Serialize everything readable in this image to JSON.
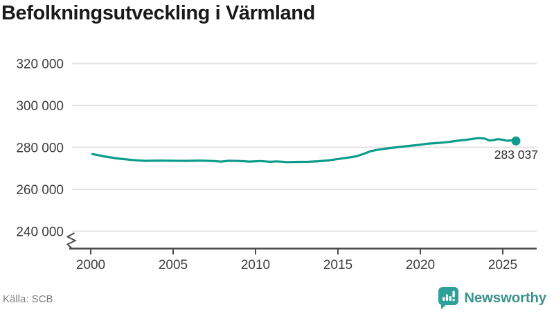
{
  "title": "Befolkningsutveckling i Värmland",
  "source": "Källa: SCB",
  "brand": {
    "name": "Newsworthy"
  },
  "colors": {
    "line": "#0b9c8c",
    "grid": "#e3e3e3",
    "axis": "#4a4a4a",
    "tick_label": "#3d3d3d",
    "title": "#1a1a1a",
    "source": "#7d7d7d",
    "brand_icon": "#2da099",
    "brand_text": "#3d938d",
    "end_label": "#2b2b2b"
  },
  "chart_data": {
    "type": "line",
    "title": "Befolkningsutveckling i Värmland",
    "xlabel": "",
    "ylabel": "",
    "x_ticks": [
      {
        "value": 2000,
        "label": "2000"
      },
      {
        "value": 2005,
        "label": "2005"
      },
      {
        "value": 2010,
        "label": "2010"
      },
      {
        "value": 2015,
        "label": "2015"
      },
      {
        "value": 2020,
        "label": "2020"
      },
      {
        "value": 2025,
        "label": "2025"
      }
    ],
    "y_ticks": [
      {
        "value": 320000,
        "label": "320 000"
      },
      {
        "value": 300000,
        "label": "300 000"
      },
      {
        "value": 280000,
        "label": "280 000"
      },
      {
        "value": 260000,
        "label": "260 000"
      },
      {
        "value": 240000,
        "label": "240 000"
      }
    ],
    "ylim": [
      240000,
      320000
    ],
    "xlim": [
      2000,
      2026
    ],
    "axis_break": true,
    "grid": "horizontal",
    "legend": "none",
    "end_label": "283 037",
    "end_value": 283037,
    "points": [
      [
        2000.1,
        276800
      ],
      [
        2000.8,
        275700
      ],
      [
        2001.6,
        274700
      ],
      [
        2002.5,
        274000
      ],
      [
        2003.3,
        273550
      ],
      [
        2004.2,
        273700
      ],
      [
        2005.0,
        273600
      ],
      [
        2005.8,
        273550
      ],
      [
        2006.7,
        273700
      ],
      [
        2007.5,
        273450
      ],
      [
        2007.9,
        273200
      ],
      [
        2008.4,
        273600
      ],
      [
        2009.2,
        273450
      ],
      [
        2009.6,
        273200
      ],
      [
        2010.3,
        273450
      ],
      [
        2010.9,
        273100
      ],
      [
        2011.3,
        273300
      ],
      [
        2011.9,
        272950
      ],
      [
        2012.6,
        273050
      ],
      [
        2013.2,
        273100
      ],
      [
        2013.8,
        273350
      ],
      [
        2014.5,
        273850
      ],
      [
        2015.1,
        274500
      ],
      [
        2015.7,
        275200
      ],
      [
        2016.1,
        275700
      ],
      [
        2016.6,
        277000
      ],
      [
        2017.0,
        278200
      ],
      [
        2017.4,
        278800
      ],
      [
        2018.0,
        279500
      ],
      [
        2018.7,
        280150
      ],
      [
        2019.3,
        280650
      ],
      [
        2019.9,
        281150
      ],
      [
        2020.5,
        281800
      ],
      [
        2021.2,
        282150
      ],
      [
        2021.8,
        282650
      ],
      [
        2022.4,
        283300
      ],
      [
        2022.8,
        283600
      ],
      [
        2023.1,
        283950
      ],
      [
        2023.5,
        284400
      ],
      [
        2023.9,
        284200
      ],
      [
        2024.2,
        283200
      ],
      [
        2024.45,
        283500
      ],
      [
        2024.7,
        283900
      ],
      [
        2025.0,
        283600
      ],
      [
        2025.25,
        283150
      ],
      [
        2025.5,
        283300
      ],
      [
        2025.8,
        283037
      ]
    ]
  }
}
